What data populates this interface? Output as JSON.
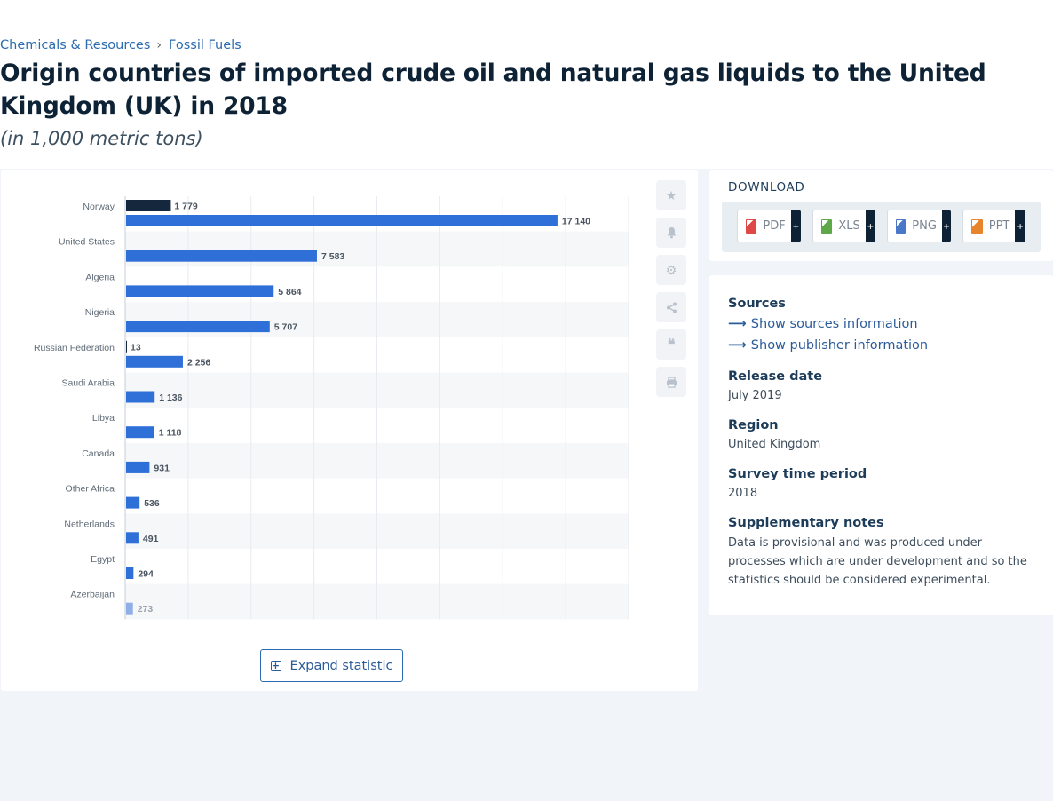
{
  "breadcrumb": {
    "items": [
      "Chemicals & Resources",
      "Fossil Fuels"
    ],
    "separator": "›"
  },
  "title": "Origin countries of imported crude oil and natural gas liquids to the United Kingdom (UK) in 2018",
  "subtitle": "(in 1,000 metric tons)",
  "chart_data": {
    "type": "bar",
    "orientation": "horizontal",
    "categories": [
      "Norway",
      "United States",
      "Algeria",
      "Nigeria",
      "Russian Federation",
      "Saudi Arabia",
      "Libya",
      "Canada",
      "Other Africa",
      "Netherlands",
      "Egypt",
      "Azerbaijan"
    ],
    "series": [
      {
        "values": [
          1779,
          null,
          null,
          null,
          13,
          null,
          null,
          null,
          null,
          null,
          null,
          null
        ],
        "color": "#15273c"
      },
      {
        "values": [
          17140,
          7583,
          5864,
          5707,
          2256,
          1136,
          1118,
          931,
          536,
          491,
          294,
          273
        ],
        "color": "#2f6fd8"
      }
    ],
    "data_labels": {
      "series_0": [
        "1 779",
        "",
        "",
        "",
        "13",
        "",
        "",
        "",
        "",
        "",
        "",
        ""
      ],
      "series_1": [
        "17 140",
        "7 583",
        "5 864",
        "5 707",
        "2 256",
        "1 136",
        "1 118",
        "931",
        "536",
        "491",
        "294",
        "273"
      ]
    },
    "xlim": [
      0,
      20000
    ],
    "grid": true,
    "legend": "none"
  },
  "toolbar": {
    "icons": [
      "star-icon",
      "bell-icon",
      "gear-icon",
      "share-icon",
      "quote-icon",
      "print-icon"
    ]
  },
  "expand_label": "Expand statistic",
  "download": {
    "title": "DOWNLOAD",
    "buttons": [
      {
        "label": "PDF",
        "plus": "+",
        "color": "#e04848"
      },
      {
        "label": "XLS",
        "plus": "+",
        "color": "#5fa84a"
      },
      {
        "label": "PNG",
        "plus": "+",
        "color": "#4a78c8"
      },
      {
        "label": "PPT",
        "plus": "+",
        "color": "#e8852c"
      }
    ]
  },
  "info": {
    "sources_label": "Sources",
    "show_sources": "Show sources information",
    "show_publisher": "Show publisher information",
    "release_label": "Release date",
    "release_value": "July 2019",
    "region_label": "Region",
    "region_value": "United Kingdom",
    "survey_label": "Survey time period",
    "survey_value": "2018",
    "notes_label": "Supplementary notes",
    "notes_value": "Data is provisional and was produced under processes which are under development and so the statistics should be considered experimental."
  }
}
